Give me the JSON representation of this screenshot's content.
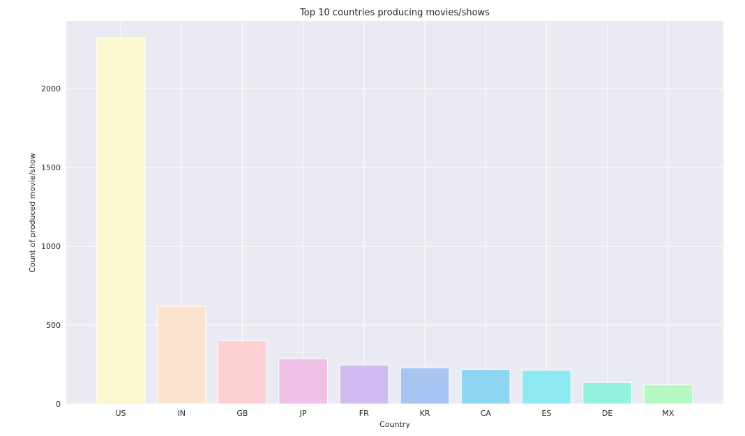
{
  "chart_data": {
    "type": "bar",
    "title": "Top 10 countries producing movies/shows",
    "xlabel": "Country",
    "ylabel": "Count of produced movie/show",
    "categories": [
      "US",
      "IN",
      "GB",
      "JP",
      "FR",
      "KR",
      "CA",
      "ES",
      "DE",
      "MX"
    ],
    "values": [
      2323,
      620,
      400,
      287,
      247,
      228,
      219,
      213,
      136,
      121
    ],
    "colors": [
      "#faf8cc",
      "#fce3cf",
      "#fdd0d4",
      "#f0c0e8",
      "#d0bcf0",
      "#a8c4f2",
      "#8ed5f1",
      "#8de8f2",
      "#95f2de",
      "#b5f8c2"
    ],
    "ylim": [
      0,
      2430
    ],
    "yticks": [
      0,
      500,
      1000,
      1500,
      2000
    ],
    "grid": true,
    "background": "#eaeaf2",
    "grid_color": "#ffffff"
  }
}
